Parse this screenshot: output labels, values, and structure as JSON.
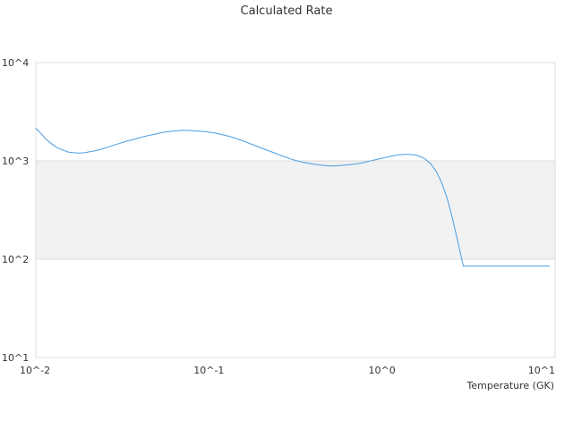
{
  "chart_data": {
    "type": "line",
    "title": "Calculated Rate",
    "xlabel": "Temperature (GK)",
    "ylabel": "",
    "x_scale": "log",
    "y_scale": "log",
    "xlim": [
      0.01,
      10
    ],
    "ylim": [
      10,
      10000
    ],
    "x_tick_values": [
      0.01,
      0.1,
      1,
      10
    ],
    "x_tick_labels": [
      "10^-2",
      "10^-1",
      "10^0",
      "10^1"
    ],
    "y_tick_values": [
      10,
      100,
      1000,
      10000
    ],
    "y_tick_labels": [
      "10^1",
      "10^2",
      "10^3",
      "10^4"
    ],
    "grid": true,
    "legend": "none",
    "shaded_band": {
      "y_from": 100,
      "y_to": 1000,
      "color": "#f2f2f2"
    },
    "series": [
      {
        "color": "#4a9de0",
        "x": [
          0.01,
          0.0107,
          0.0115,
          0.0124,
          0.0133,
          0.0143,
          0.0154,
          0.0166,
          0.0178,
          0.0191,
          0.0205,
          0.0221,
          0.0237,
          0.0255,
          0.0274,
          0.0295,
          0.0317,
          0.034,
          0.0366,
          0.0393,
          0.0422,
          0.0454,
          0.0488,
          0.0524,
          0.0563,
          0.0605,
          0.065,
          0.0699,
          0.0751,
          0.0807,
          0.0867,
          0.0932,
          0.1001,
          0.1076,
          0.1156,
          0.1243,
          0.1335,
          0.1435,
          0.1542,
          0.1657,
          0.1781,
          0.1914,
          0.2057,
          0.221,
          0.2375,
          0.2552,
          0.2743,
          0.2947,
          0.3167,
          0.3404,
          0.3658,
          0.3931,
          0.4224,
          0.4539,
          0.4878,
          0.5242,
          0.5633,
          0.6053,
          0.6505,
          0.699,
          0.7512,
          0.8072,
          0.8675,
          0.9322,
          1.0018,
          1.0765,
          1.1569,
          1.2432,
          1.336,
          1.4357,
          1.5429,
          1.658,
          1.7818,
          1.9148,
          2.0577,
          2.2113,
          2.3763,
          2.5537,
          2.7443,
          2.9491,
          3.1692,
          3.4057,
          3.66,
          3.9331,
          4.2267,
          4.5421,
          4.8812,
          5.2454,
          5.637,
          6.0577,
          6.5098,
          6.9957,
          7.5179,
          8.079,
          8.682,
          9.33
        ],
        "y": [
          2150,
          1900,
          1650,
          1480,
          1360,
          1290,
          1230,
          1210,
          1200,
          1210,
          1240,
          1270,
          1310,
          1360,
          1420,
          1480,
          1540,
          1600,
          1650,
          1710,
          1770,
          1820,
          1870,
          1920,
          1970,
          2000,
          2030,
          2040,
          2040,
          2030,
          2010,
          1990,
          1960,
          1920,
          1870,
          1820,
          1760,
          1690,
          1620,
          1540,
          1470,
          1400,
          1330,
          1270,
          1210,
          1150,
          1100,
          1050,
          1010,
          980,
          955,
          935,
          915,
          900,
          890,
          890,
          895,
          905,
          915,
          930,
          950,
          975,
          1005,
          1035,
          1065,
          1095,
          1125,
          1150,
          1165,
          1165,
          1150,
          1110,
          1040,
          930,
          780,
          600,
          420,
          260,
          150,
          85,
          85,
          85,
          85,
          85,
          85,
          85,
          85,
          85,
          85,
          85,
          85,
          85,
          85,
          85,
          85,
          85
        ]
      }
    ]
  }
}
